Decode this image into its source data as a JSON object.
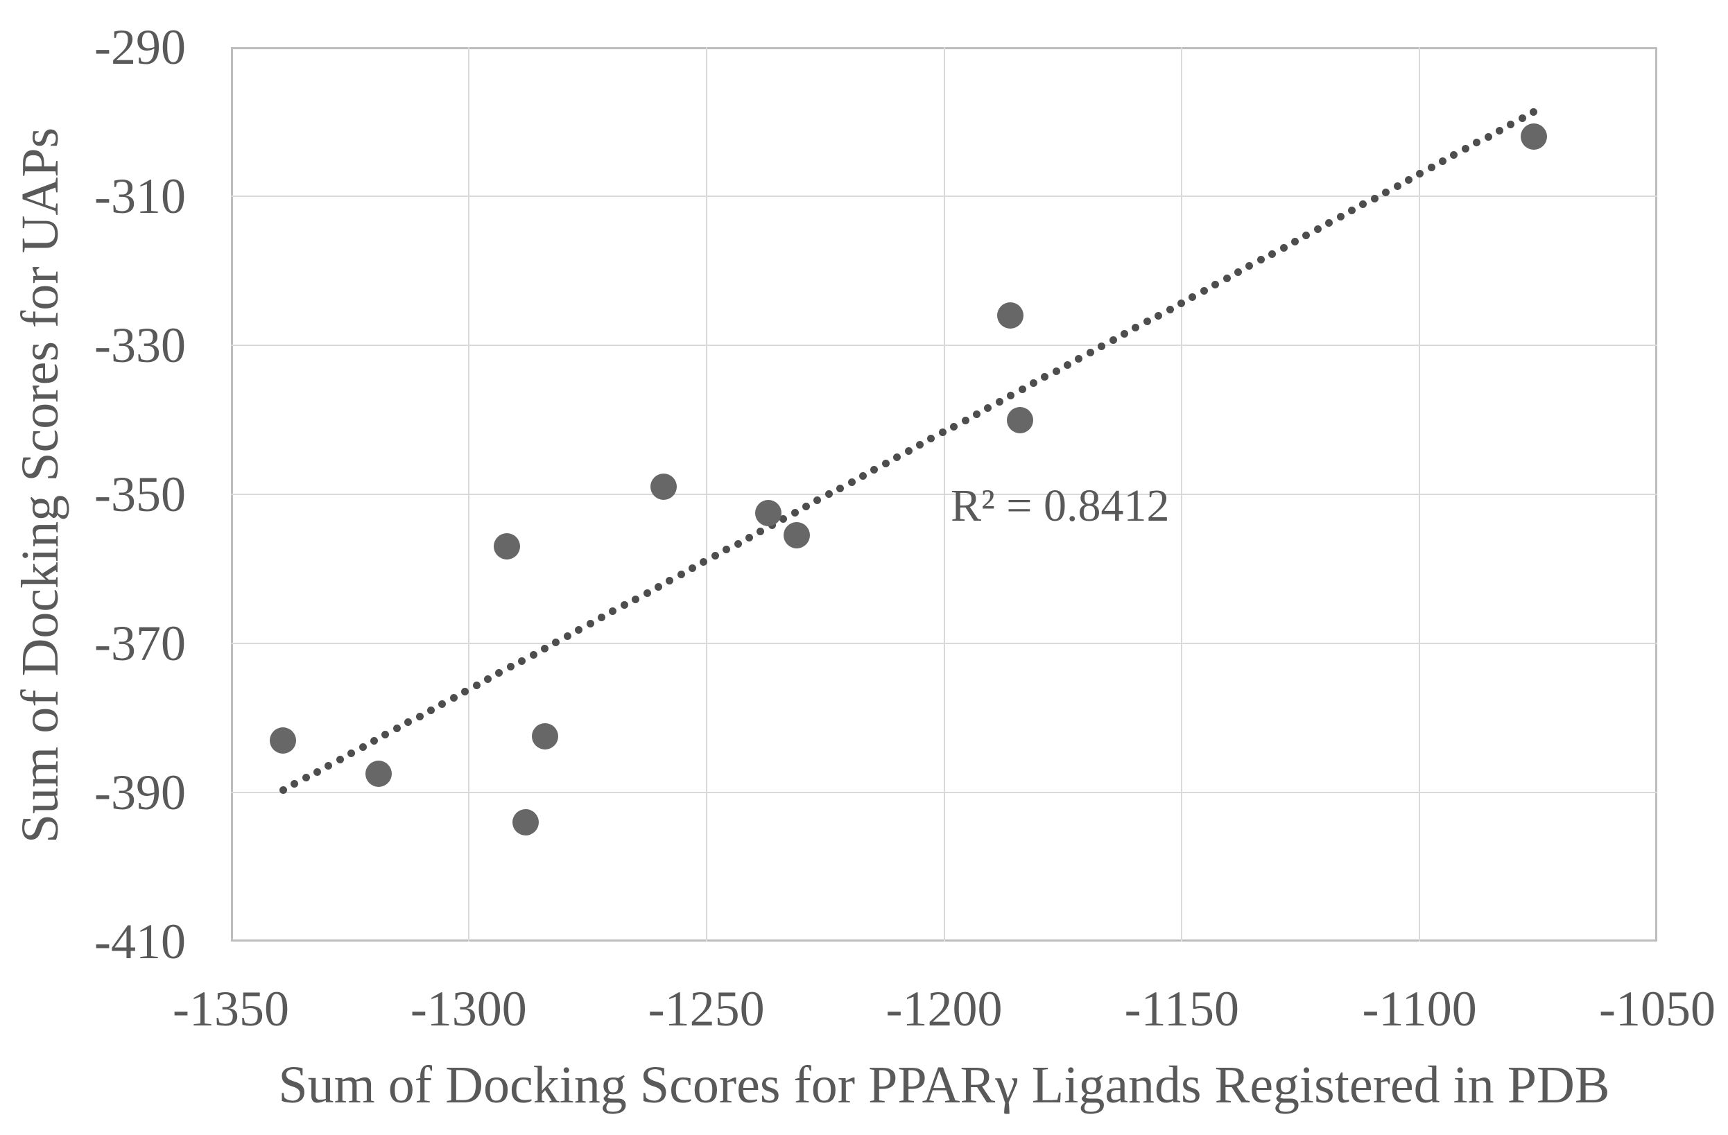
{
  "chart_data": {
    "type": "scatter",
    "title": "",
    "xlabel": "Sum of Docking Scores for PPARγ Ligands Registered in PDB",
    "ylabel": "Sum of Docking Scores for UAPs",
    "xlim": [
      -1350,
      -1050
    ],
    "ylim": [
      -410,
      -290
    ],
    "x_ticks": [
      -1350,
      -1300,
      -1250,
      -1200,
      -1150,
      -1100,
      -1050
    ],
    "y_ticks": [
      -290,
      -310,
      -330,
      -350,
      -370,
      -390,
      -410
    ],
    "grid": true,
    "legend": false,
    "points": [
      {
        "x": -1339,
        "y": -383
      },
      {
        "x": -1319,
        "y": -387.5
      },
      {
        "x": -1292,
        "y": -357
      },
      {
        "x": -1288,
        "y": -394
      },
      {
        "x": -1284,
        "y": -382.5
      },
      {
        "x": -1259,
        "y": -349
      },
      {
        "x": -1237,
        "y": -352.5
      },
      {
        "x": -1231,
        "y": -355.5
      },
      {
        "x": -1186,
        "y": -326
      },
      {
        "x": -1184,
        "y": -340
      },
      {
        "x": -1076,
        "y": -302
      }
    ],
    "trendline": {
      "style": "dotted",
      "x1": -1339,
      "y1": -389.7,
      "x2": -1076,
      "y2": -298.7
    },
    "annotation": {
      "text": "R² = 0.8412",
      "r_squared": 0.8412
    }
  },
  "colors": {
    "point": "#676767",
    "trendline_dot": "#4d4d4d",
    "gridline": "#d9d9d9",
    "plot_border": "#bdbdbd",
    "axis_text": "#595959",
    "background": "#ffffff"
  }
}
